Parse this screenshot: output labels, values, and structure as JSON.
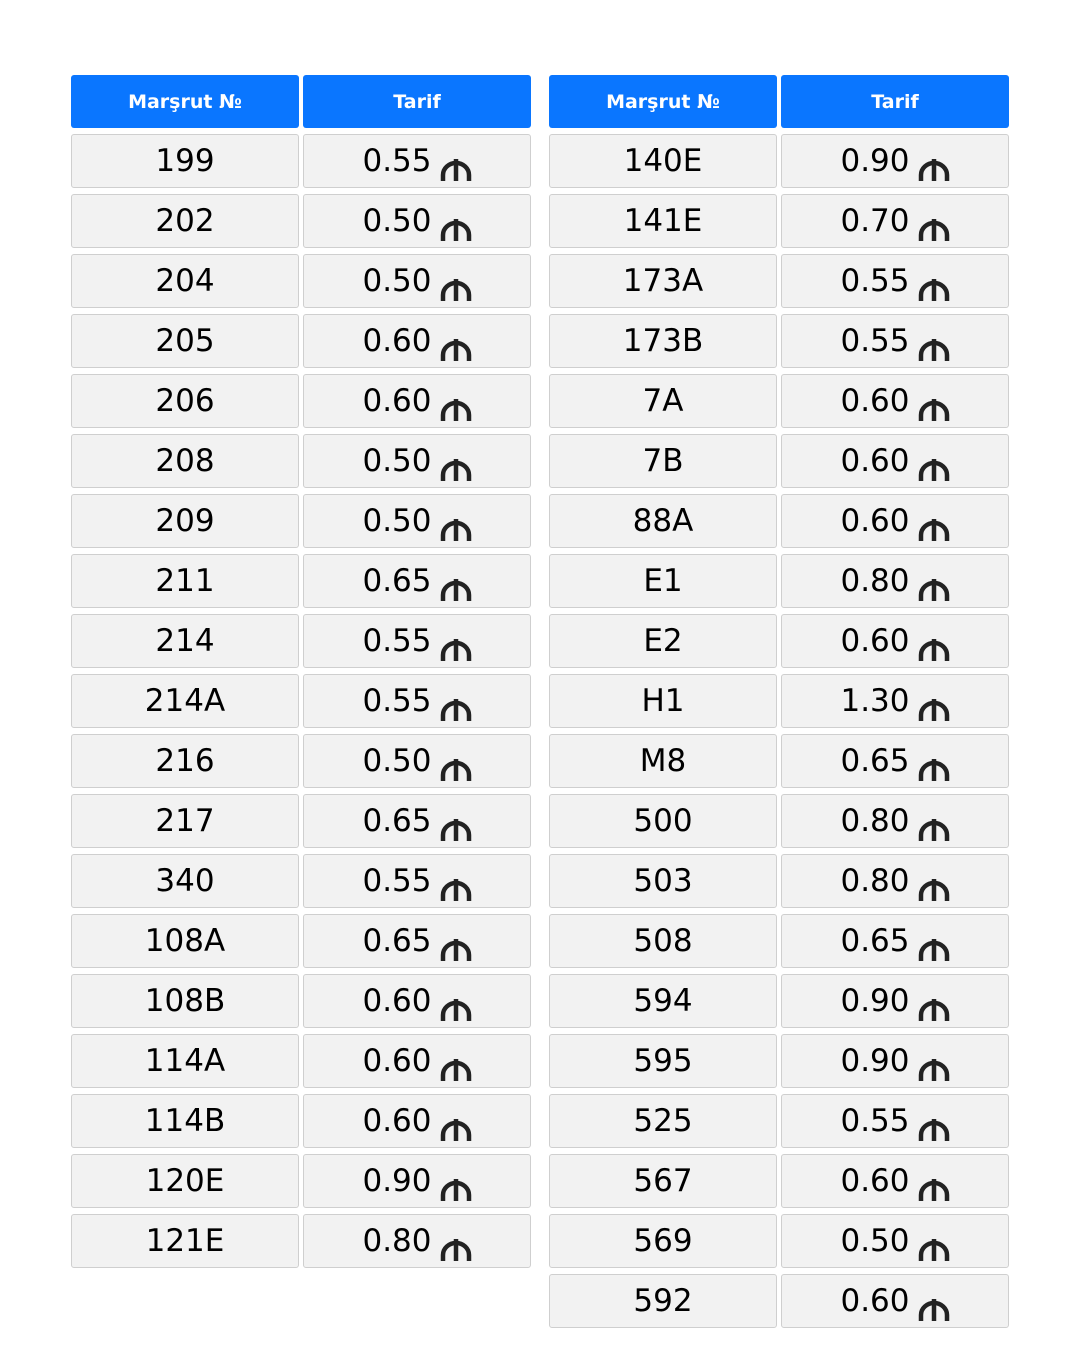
{
  "tables": [
    {
      "headers": [
        "Marşrut №",
        "Tarif"
      ],
      "rows": [
        [
          "199",
          "0.55"
        ],
        [
          "202",
          "0.50"
        ],
        [
          "204",
          "0.50"
        ],
        [
          "205",
          "0.60"
        ],
        [
          "206",
          "0.60"
        ],
        [
          "208",
          "0.50"
        ],
        [
          "209",
          "0.50"
        ],
        [
          "211",
          "0.65"
        ],
        [
          "214",
          "0.55"
        ],
        [
          "214A",
          "0.55"
        ],
        [
          "216",
          "0.50"
        ],
        [
          "217",
          "0.65"
        ],
        [
          "340",
          "0.55"
        ],
        [
          "108A",
          "0.65"
        ],
        [
          "108B",
          "0.60"
        ],
        [
          "114A",
          "0.60"
        ],
        [
          "114B",
          "0.60"
        ],
        [
          "120E",
          "0.90"
        ],
        [
          "121E",
          "0.80"
        ]
      ]
    },
    {
      "headers": [
        "Marşrut №",
        "Tarif"
      ],
      "rows": [
        [
          "140E",
          "0.90"
        ],
        [
          "141E",
          "0.70"
        ],
        [
          "173A",
          "0.55"
        ],
        [
          "173B",
          "0.55"
        ],
        [
          "7A",
          "0.60"
        ],
        [
          "7B",
          "0.60"
        ],
        [
          "88A",
          "0.60"
        ],
        [
          "E1",
          "0.80"
        ],
        [
          "E2",
          "0.60"
        ],
        [
          "H1",
          "1.30"
        ],
        [
          "M8",
          "0.65"
        ],
        [
          "500",
          "0.80"
        ],
        [
          "503",
          "0.80"
        ],
        [
          "508",
          "0.65"
        ],
        [
          "594",
          "0.90"
        ],
        [
          "595",
          "0.90"
        ],
        [
          "525",
          "0.55"
        ],
        [
          "567",
          "0.60"
        ],
        [
          "569",
          "0.50"
        ],
        [
          "592",
          "0.60"
        ]
      ]
    }
  ],
  "currency_icon": "manat-icon",
  "colors": {
    "header_bg": "#0a76ff",
    "header_text": "#ffffff",
    "cell_bg": "#f2f2f2",
    "cell_border": "#cfcfcf"
  }
}
